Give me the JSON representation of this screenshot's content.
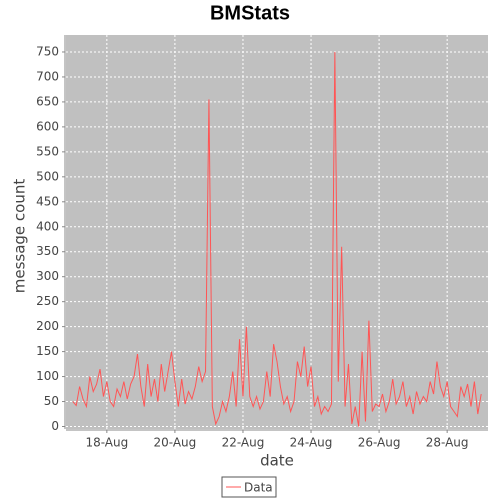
{
  "chart_data": {
    "type": "line",
    "title": "BMStats",
    "x_label": "date",
    "y_label": "message count",
    "x": [
      17.0,
      17.1,
      17.2,
      17.3,
      17.4,
      17.5,
      17.6,
      17.7,
      17.8,
      17.9,
      18.0,
      18.1,
      18.2,
      18.3,
      18.4,
      18.5,
      18.6,
      18.7,
      18.8,
      18.9,
      19.0,
      19.1,
      19.2,
      19.3,
      19.4,
      19.5,
      19.6,
      19.7,
      19.8,
      19.9,
      20.0,
      20.1,
      20.2,
      20.3,
      20.4,
      20.5,
      20.6,
      20.7,
      20.8,
      20.9,
      21.0,
      21.1,
      21.2,
      21.3,
      21.4,
      21.5,
      21.6,
      21.7,
      21.8,
      21.9,
      22.0,
      22.1,
      22.2,
      22.3,
      22.4,
      22.5,
      22.6,
      22.7,
      22.8,
      22.9,
      23.0,
      23.1,
      23.2,
      23.3,
      23.4,
      23.5,
      23.6,
      23.7,
      23.8,
      23.9,
      24.0,
      24.1,
      24.2,
      24.3,
      24.4,
      24.5,
      24.6,
      24.7,
      24.8,
      24.9,
      25.0,
      25.1,
      25.2,
      25.3,
      25.4,
      25.5,
      25.6,
      25.7,
      25.8,
      25.9,
      26.0,
      26.1,
      26.2,
      26.3,
      26.4,
      26.5,
      26.6,
      26.7,
      26.8,
      26.9,
      27.0,
      27.1,
      27.2,
      27.3,
      27.4,
      27.5,
      27.6,
      27.7,
      27.8,
      27.9,
      28.0,
      28.1,
      28.2,
      28.3,
      28.4,
      28.5,
      28.6,
      28.7,
      28.8,
      28.9,
      29.0
    ],
    "series": [
      {
        "name": "Data",
        "color": "#ff5555",
        "values": [
          50,
          42,
          80,
          55,
          40,
          100,
          70,
          85,
          115,
          60,
          90,
          50,
          40,
          75,
          60,
          90,
          55,
          85,
          100,
          145,
          80,
          40,
          125,
          60,
          95,
          50,
          125,
          70,
          110,
          150,
          90,
          40,
          95,
          45,
          70,
          55,
          80,
          120,
          90,
          110,
          655,
          40,
          5,
          20,
          50,
          30,
          60,
          110,
          40,
          175,
          60,
          200,
          60,
          40,
          60,
          35,
          50,
          110,
          60,
          165,
          130,
          80,
          45,
          60,
          30,
          50,
          130,
          100,
          160,
          80,
          120,
          40,
          60,
          25,
          40,
          30,
          45,
          750,
          90,
          360,
          40,
          125,
          5,
          40,
          0,
          150,
          10,
          212,
          30,
          45,
          40,
          65,
          30,
          50,
          95,
          45,
          60,
          90,
          40,
          60,
          25,
          70,
          45,
          60,
          50,
          90,
          65,
          130,
          80,
          60,
          90,
          40,
          30,
          20,
          80,
          60,
          85,
          40,
          90,
          25,
          65
        ]
      }
    ],
    "xlim": [
      16.8,
      29.2
    ],
    "xticks": [
      {
        "value": 18,
        "label": "18-Aug"
      },
      {
        "value": 20,
        "label": "20-Aug"
      },
      {
        "value": 22,
        "label": "22-Aug"
      },
      {
        "value": 24,
        "label": "24-Aug"
      },
      {
        "value": 26,
        "label": "26-Aug"
      },
      {
        "value": 28,
        "label": "28-Aug"
      }
    ],
    "ylim": [
      -5,
      784
    ],
    "yticks": [
      0,
      50,
      100,
      150,
      200,
      250,
      300,
      350,
      400,
      450,
      500,
      550,
      600,
      650,
      700,
      750
    ],
    "grid": true,
    "legend": "bottom"
  }
}
